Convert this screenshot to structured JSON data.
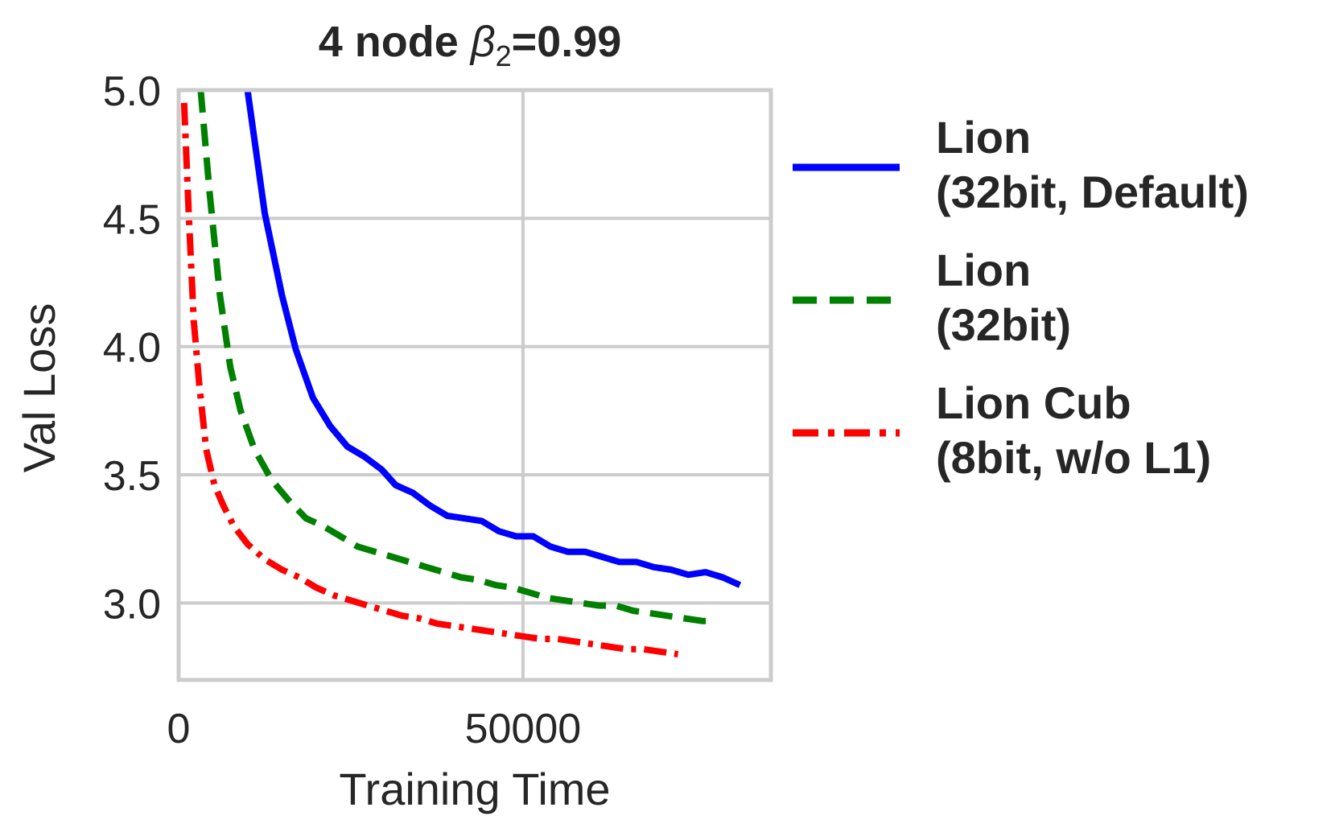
{
  "chart_data": {
    "type": "line",
    "title_prefix": "4 node ",
    "title_beta": "β",
    "title_sub": "2",
    "title_suffix": "=0.99",
    "xlabel": "Training Time",
    "ylabel": "Val Loss",
    "xlim": [
      0,
      86000
    ],
    "ylim": [
      2.7,
      5.0
    ],
    "xticks": [
      0,
      50000
    ],
    "xtick_labels": [
      "0",
      "50000"
    ],
    "yticks": [
      3.0,
      3.5,
      4.0,
      4.5,
      5.0
    ],
    "ytick_labels": [
      "3.0",
      "3.5",
      "4.0",
      "4.5",
      "5.0"
    ],
    "grid": true,
    "legend_position": "outside-right",
    "series": [
      {
        "name_lines": [
          "Lion",
          "(32bit, Default)"
        ],
        "color": "#0000ff",
        "style": "solid",
        "x": [
          10000,
          12500,
          15000,
          17000,
          19500,
          22000,
          24500,
          27000,
          29500,
          31500,
          34000,
          36500,
          39000,
          41500,
          44000,
          46500,
          49000,
          51500,
          54000,
          56500,
          59000,
          61500,
          64000,
          66500,
          69000,
          71500,
          74000,
          76500,
          79000,
          81500
        ],
        "y": [
          5.0,
          4.52,
          4.2,
          3.99,
          3.8,
          3.69,
          3.61,
          3.57,
          3.52,
          3.46,
          3.43,
          3.38,
          3.34,
          3.33,
          3.32,
          3.28,
          3.26,
          3.26,
          3.22,
          3.2,
          3.2,
          3.18,
          3.16,
          3.16,
          3.14,
          3.13,
          3.11,
          3.12,
          3.1,
          3.07
        ]
      },
      {
        "name_lines": [
          "Lion",
          "(32bit)"
        ],
        "color": "#008000",
        "style": "dashed",
        "x": [
          3200,
          4500,
          6000,
          7500,
          9000,
          11000,
          13500,
          16000,
          18500,
          21000,
          23500,
          26000,
          28500,
          31000,
          33500,
          36000,
          38500,
          41000,
          43500,
          46000,
          48500,
          51000,
          53500,
          56000,
          58500,
          61000,
          63500,
          66000,
          68500,
          71000,
          73500,
          76000,
          78000
        ],
        "y": [
          5.0,
          4.6,
          4.2,
          3.92,
          3.75,
          3.6,
          3.48,
          3.4,
          3.33,
          3.3,
          3.26,
          3.22,
          3.2,
          3.18,
          3.16,
          3.14,
          3.12,
          3.1,
          3.09,
          3.07,
          3.06,
          3.04,
          3.02,
          3.01,
          3.0,
          2.99,
          2.99,
          2.97,
          2.96,
          2.95,
          2.94,
          2.93,
          2.93
        ]
      },
      {
        "name_lines": [
          "Lion Cub",
          "(8bit, w/o L1)"
        ],
        "color": "#ff0000",
        "style": "dashdot",
        "x": [
          800,
          1500,
          2200,
          3000,
          4000,
          5200,
          6500,
          8000,
          10000,
          12500,
          15000,
          17500,
          20000,
          22500,
          25000,
          27500,
          30000,
          32500,
          35000,
          37500,
          40000,
          42500,
          45000,
          47500,
          50000,
          52500,
          55000,
          57500,
          60000,
          62500,
          65000,
          67500,
          70000,
          72500
        ],
        "y": [
          4.95,
          4.5,
          4.1,
          3.85,
          3.6,
          3.46,
          3.38,
          3.3,
          3.23,
          3.17,
          3.13,
          3.1,
          3.06,
          3.03,
          3.01,
          2.99,
          2.97,
          2.95,
          2.94,
          2.92,
          2.91,
          2.9,
          2.89,
          2.88,
          2.87,
          2.86,
          2.86,
          2.85,
          2.84,
          2.83,
          2.82,
          2.82,
          2.81,
          2.8
        ]
      }
    ]
  }
}
